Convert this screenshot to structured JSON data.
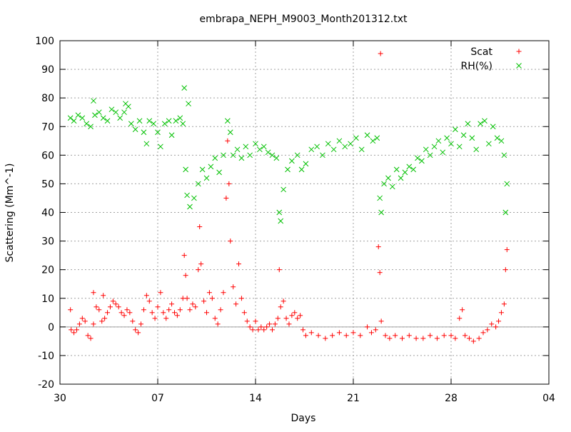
{
  "chart_data": {
    "type": "scatter",
    "title": "embrapa_NEPH_M9003_Month201312.txt",
    "xlabel": "Days",
    "ylabel": "Scattering (Mm^-1)",
    "x_unit": "days",
    "x_ticks": [
      {
        "day": 0,
        "label": "30"
      },
      {
        "day": 7,
        "label": "07"
      },
      {
        "day": 14,
        "label": "14"
      },
      {
        "day": 21,
        "label": "21"
      },
      {
        "day": 28,
        "label": "28"
      },
      {
        "day": 35,
        "label": "04"
      }
    ],
    "xlim": [
      0,
      35
    ],
    "ylim": [
      -20,
      100
    ],
    "y_ticks": [
      -20,
      -10,
      0,
      10,
      20,
      30,
      40,
      50,
      60,
      70,
      80,
      90,
      100
    ],
    "grid": true,
    "zero_line": true,
    "legend_position": "top-right",
    "series": [
      {
        "name": "Scat",
        "marker": "+",
        "color": "#ff0000",
        "points": [
          [
            0.75,
            6.0
          ],
          [
            0.8,
            -1.0
          ],
          [
            1.0,
            -2.0
          ],
          [
            1.2,
            -1.0
          ],
          [
            1.4,
            1.0
          ],
          [
            1.6,
            3.0
          ],
          [
            1.8,
            2.0
          ],
          [
            2.0,
            -3.0
          ],
          [
            2.2,
            -4.0
          ],
          [
            2.4,
            1.0
          ],
          [
            2.6,
            7.0
          ],
          [
            2.8,
            6.0
          ],
          [
            3.0,
            2.0
          ],
          [
            3.2,
            3.0
          ],
          [
            3.4,
            5.0
          ],
          [
            3.6,
            7.0
          ],
          [
            3.8,
            9.0
          ],
          [
            4.0,
            8.0
          ],
          [
            4.2,
            7.0
          ],
          [
            4.4,
            5.0
          ],
          [
            4.6,
            4.0
          ],
          [
            4.8,
            6.0
          ],
          [
            5.0,
            5.0
          ],
          [
            5.2,
            2.0
          ],
          [
            5.4,
            -1.0
          ],
          [
            5.6,
            -2.0
          ],
          [
            5.8,
            1.0
          ],
          [
            6.0,
            6.0
          ],
          [
            6.2,
            11.0
          ],
          [
            6.4,
            9.0
          ],
          [
            6.6,
            5.0
          ],
          [
            6.8,
            3.0
          ],
          [
            7.0,
            7.0
          ],
          [
            7.2,
            12.0
          ],
          [
            7.4,
            5.0
          ],
          [
            7.6,
            3.0
          ],
          [
            7.8,
            6.0
          ],
          [
            8.0,
            8.0
          ],
          [
            8.2,
            5.0
          ],
          [
            8.4,
            4.0
          ],
          [
            8.6,
            6.0
          ],
          [
            8.8,
            10.0
          ],
          [
            8.9,
            25.0
          ],
          [
            9.0,
            18.0
          ],
          [
            9.1,
            10.0
          ],
          [
            9.3,
            6.0
          ],
          [
            9.5,
            8.0
          ],
          [
            9.7,
            7.0
          ],
          [
            9.9,
            20.0
          ],
          [
            10.0,
            35.0
          ],
          [
            10.1,
            22.0
          ],
          [
            10.3,
            9.0
          ],
          [
            10.5,
            5.0
          ],
          [
            10.7,
            12.0
          ],
          [
            10.9,
            10.0
          ],
          [
            11.1,
            3.0
          ],
          [
            11.3,
            1.0
          ],
          [
            11.5,
            6.0
          ],
          [
            11.7,
            12.0
          ],
          [
            11.9,
            45.0
          ],
          [
            12.0,
            65.0
          ],
          [
            12.1,
            50.0
          ],
          [
            12.2,
            30.0
          ],
          [
            12.4,
            14.0
          ],
          [
            12.6,
            8.0
          ],
          [
            12.8,
            22.0
          ],
          [
            13.0,
            10.0
          ],
          [
            13.2,
            5.0
          ],
          [
            13.4,
            2.0
          ],
          [
            13.6,
            0.0
          ],
          [
            13.8,
            -1.0
          ],
          [
            14.0,
            2.0
          ],
          [
            14.2,
            -1.0
          ],
          [
            14.4,
            0.0
          ],
          [
            14.6,
            -1.0
          ],
          [
            14.8,
            0.0
          ],
          [
            15.0,
            1.0
          ],
          [
            15.2,
            -1.0
          ],
          [
            15.4,
            1.0
          ],
          [
            15.6,
            3.0
          ],
          [
            15.8,
            7.0
          ],
          [
            16.0,
            9.0
          ],
          [
            16.2,
            3.0
          ],
          [
            16.4,
            1.0
          ],
          [
            16.6,
            4.0
          ],
          [
            16.8,
            5.0
          ],
          [
            17.0,
            3.0
          ],
          [
            17.2,
            4.0
          ],
          [
            17.4,
            -1.0
          ],
          [
            17.6,
            -3.0
          ],
          [
            18.0,
            -2.0
          ],
          [
            18.5,
            -3.0
          ],
          [
            19.0,
            -4.0
          ],
          [
            19.5,
            -3.0
          ],
          [
            20.0,
            -2.0
          ],
          [
            20.5,
            -3.0
          ],
          [
            21.0,
            -2.0
          ],
          [
            21.5,
            -3.0
          ],
          [
            22.0,
            0.0
          ],
          [
            22.3,
            -2.0
          ],
          [
            22.6,
            -1.0
          ],
          [
            22.8,
            28.0
          ],
          [
            22.9,
            19.0
          ],
          [
            22.95,
            95.5
          ],
          [
            23.0,
            2.0
          ],
          [
            23.3,
            -3.0
          ],
          [
            23.6,
            -4.0
          ],
          [
            24.0,
            -3.0
          ],
          [
            24.5,
            -4.0
          ],
          [
            25.0,
            -3.0
          ],
          [
            25.5,
            -4.0
          ],
          [
            26.0,
            -4.0
          ],
          [
            26.5,
            -3.0
          ],
          [
            27.0,
            -4.0
          ],
          [
            27.5,
            -3.0
          ],
          [
            28.0,
            -3.0
          ],
          [
            28.3,
            -4.0
          ],
          [
            28.6,
            3.0
          ],
          [
            28.8,
            6.0
          ],
          [
            29.0,
            -3.0
          ],
          [
            29.3,
            -4.0
          ],
          [
            29.6,
            -5.0
          ],
          [
            30.0,
            -4.0
          ],
          [
            30.3,
            -2.0
          ],
          [
            30.6,
            -1.0
          ],
          [
            30.9,
            1.0
          ],
          [
            31.2,
            0.0
          ],
          [
            31.4,
            2.0
          ],
          [
            31.6,
            5.0
          ],
          [
            31.8,
            8.0
          ],
          [
            31.9,
            20.0
          ],
          [
            32.0,
            27.0
          ],
          [
            15.7,
            20.0
          ],
          [
            2.4,
            12.0
          ],
          [
            3.1,
            11.0
          ]
        ]
      },
      {
        "name": "RH(%)",
        "marker": "x",
        "color": "#00c000",
        "points": [
          [
            0.75,
            73.0
          ],
          [
            1.0,
            72.0
          ],
          [
            1.3,
            74.0
          ],
          [
            1.6,
            73.0
          ],
          [
            1.9,
            71.0
          ],
          [
            2.2,
            70.0
          ],
          [
            2.5,
            74.0
          ],
          [
            2.8,
            75.0
          ],
          [
            3.1,
            73.0
          ],
          [
            3.4,
            72.0
          ],
          [
            3.7,
            76.0
          ],
          [
            4.0,
            75.0
          ],
          [
            4.3,
            73.0
          ],
          [
            4.6,
            75.0
          ],
          [
            4.9,
            77.0
          ],
          [
            5.1,
            71.0
          ],
          [
            5.4,
            69.0
          ],
          [
            5.7,
            72.0
          ],
          [
            6.0,
            68.0
          ],
          [
            6.2,
            64.0
          ],
          [
            6.4,
            72.0
          ],
          [
            6.7,
            71.0
          ],
          [
            7.0,
            68.0
          ],
          [
            7.2,
            63.0
          ],
          [
            7.5,
            71.0
          ],
          [
            7.8,
            72.0
          ],
          [
            8.0,
            67.0
          ],
          [
            8.3,
            72.0
          ],
          [
            8.6,
            73.0
          ],
          [
            8.8,
            71.0
          ],
          [
            8.9,
            83.5
          ],
          [
            9.0,
            55.0
          ],
          [
            9.1,
            46.0
          ],
          [
            9.3,
            42.0
          ],
          [
            9.6,
            45.0
          ],
          [
            9.9,
            50.0
          ],
          [
            10.2,
            55.0
          ],
          [
            10.5,
            52.0
          ],
          [
            10.8,
            56.0
          ],
          [
            11.1,
            59.0
          ],
          [
            11.4,
            54.0
          ],
          [
            11.7,
            60.0
          ],
          [
            12.0,
            72.0
          ],
          [
            12.2,
            68.0
          ],
          [
            12.4,
            60.0
          ],
          [
            12.7,
            62.0
          ],
          [
            13.0,
            59.0
          ],
          [
            13.3,
            63.0
          ],
          [
            13.6,
            60.0
          ],
          [
            14.0,
            64.0
          ],
          [
            14.3,
            62.0
          ],
          [
            14.6,
            63.0
          ],
          [
            14.9,
            61.0
          ],
          [
            15.2,
            60.0
          ],
          [
            15.5,
            59.0
          ],
          [
            15.7,
            40.0
          ],
          [
            15.8,
            37.0
          ],
          [
            16.0,
            48.0
          ],
          [
            16.3,
            55.0
          ],
          [
            16.6,
            58.0
          ],
          [
            17.0,
            60.0
          ],
          [
            17.3,
            55.0
          ],
          [
            17.6,
            57.0
          ],
          [
            18.0,
            62.0
          ],
          [
            18.4,
            63.0
          ],
          [
            18.8,
            60.0
          ],
          [
            19.2,
            64.0
          ],
          [
            19.6,
            62.0
          ],
          [
            20.0,
            65.0
          ],
          [
            20.4,
            63.0
          ],
          [
            20.8,
            64.0
          ],
          [
            21.2,
            66.0
          ],
          [
            21.6,
            62.0
          ],
          [
            22.0,
            67.0
          ],
          [
            22.4,
            65.0
          ],
          [
            22.7,
            66.0
          ],
          [
            22.9,
            45.0
          ],
          [
            23.0,
            40.0
          ],
          [
            23.2,
            50.0
          ],
          [
            23.5,
            52.0
          ],
          [
            23.8,
            49.0
          ],
          [
            24.1,
            55.0
          ],
          [
            24.4,
            52.0
          ],
          [
            24.7,
            54.0
          ],
          [
            25.0,
            56.0
          ],
          [
            25.3,
            55.0
          ],
          [
            25.6,
            59.0
          ],
          [
            25.9,
            58.0
          ],
          [
            26.2,
            62.0
          ],
          [
            26.5,
            60.0
          ],
          [
            26.8,
            63.0
          ],
          [
            27.1,
            65.0
          ],
          [
            27.4,
            61.0
          ],
          [
            27.7,
            66.0
          ],
          [
            28.0,
            64.0
          ],
          [
            28.3,
            69.0
          ],
          [
            28.6,
            63.0
          ],
          [
            28.9,
            67.0
          ],
          [
            29.2,
            71.0
          ],
          [
            29.5,
            66.0
          ],
          [
            29.8,
            62.0
          ],
          [
            30.1,
            71.0
          ],
          [
            30.4,
            72.0
          ],
          [
            30.7,
            64.0
          ],
          [
            31.0,
            70.0
          ],
          [
            31.3,
            66.0
          ],
          [
            31.6,
            65.0
          ],
          [
            31.8,
            60.0
          ],
          [
            31.9,
            40.0
          ],
          [
            32.0,
            50.0
          ],
          [
            9.2,
            78.0
          ],
          [
            2.4,
            79.0
          ],
          [
            4.7,
            78.0
          ]
        ]
      }
    ]
  }
}
